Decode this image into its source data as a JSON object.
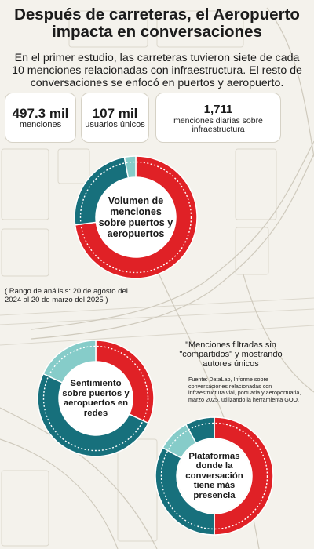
{
  "header": {
    "title": "Después de carreteras, el Aeropuerto impacta en conversaciones",
    "intro": "En el primer estudio, las carreteras tuvieron siete de cada 10 menciones relacionadas con infraestructura. El resto de conversaciones se enfocó en puertos y aeropuerto."
  },
  "stats": [
    {
      "value": "497.3 mil",
      "label": "menciones"
    },
    {
      "value": "107 mil",
      "label": "usuarios únicos"
    },
    {
      "value": "1,711",
      "label": "menciones diarias sobre infraestructura"
    }
  ],
  "notes": {
    "range": "( Rango de análisis: 20 de agosto del 2024 al 20 de marzo del 2025 )",
    "filter": "\"Menciones filtradas sin \"compartidos\" y mostrando autores únicos",
    "source": "Fuente: DataLab, Informe sobre conversaciones relacionadas con infraestructura vial, portuaria y aeroportuaria, marzo 2025, utilizando la herramienta GOO."
  },
  "colors": {
    "red": "#e02126",
    "teal": "#17707c",
    "light_teal": "#86ccc9",
    "white": "#ffffff"
  },
  "chart_data": [
    {
      "type": "pie",
      "title": "Volumen de menciones sobre puertos y aeropuertos",
      "values": [
        0.73,
        0.24,
        0.03
      ],
      "colors": [
        "#e02126",
        "#17707c",
        "#86ccc9"
      ]
    },
    {
      "type": "pie",
      "title": "Sentimiento sobre puertos y aeropuertos en redes",
      "values": [
        0.32,
        0.5,
        0.18
      ],
      "colors": [
        "#e02126",
        "#17707c",
        "#86ccc9"
      ]
    },
    {
      "type": "pie",
      "title": "Plataformas donde la conversación tiene más presencia",
      "values": [
        0.5,
        0.33,
        0.09,
        0.08
      ],
      "colors": [
        "#e02126",
        "#17707c",
        "#86ccc9",
        "#17707c"
      ]
    }
  ]
}
